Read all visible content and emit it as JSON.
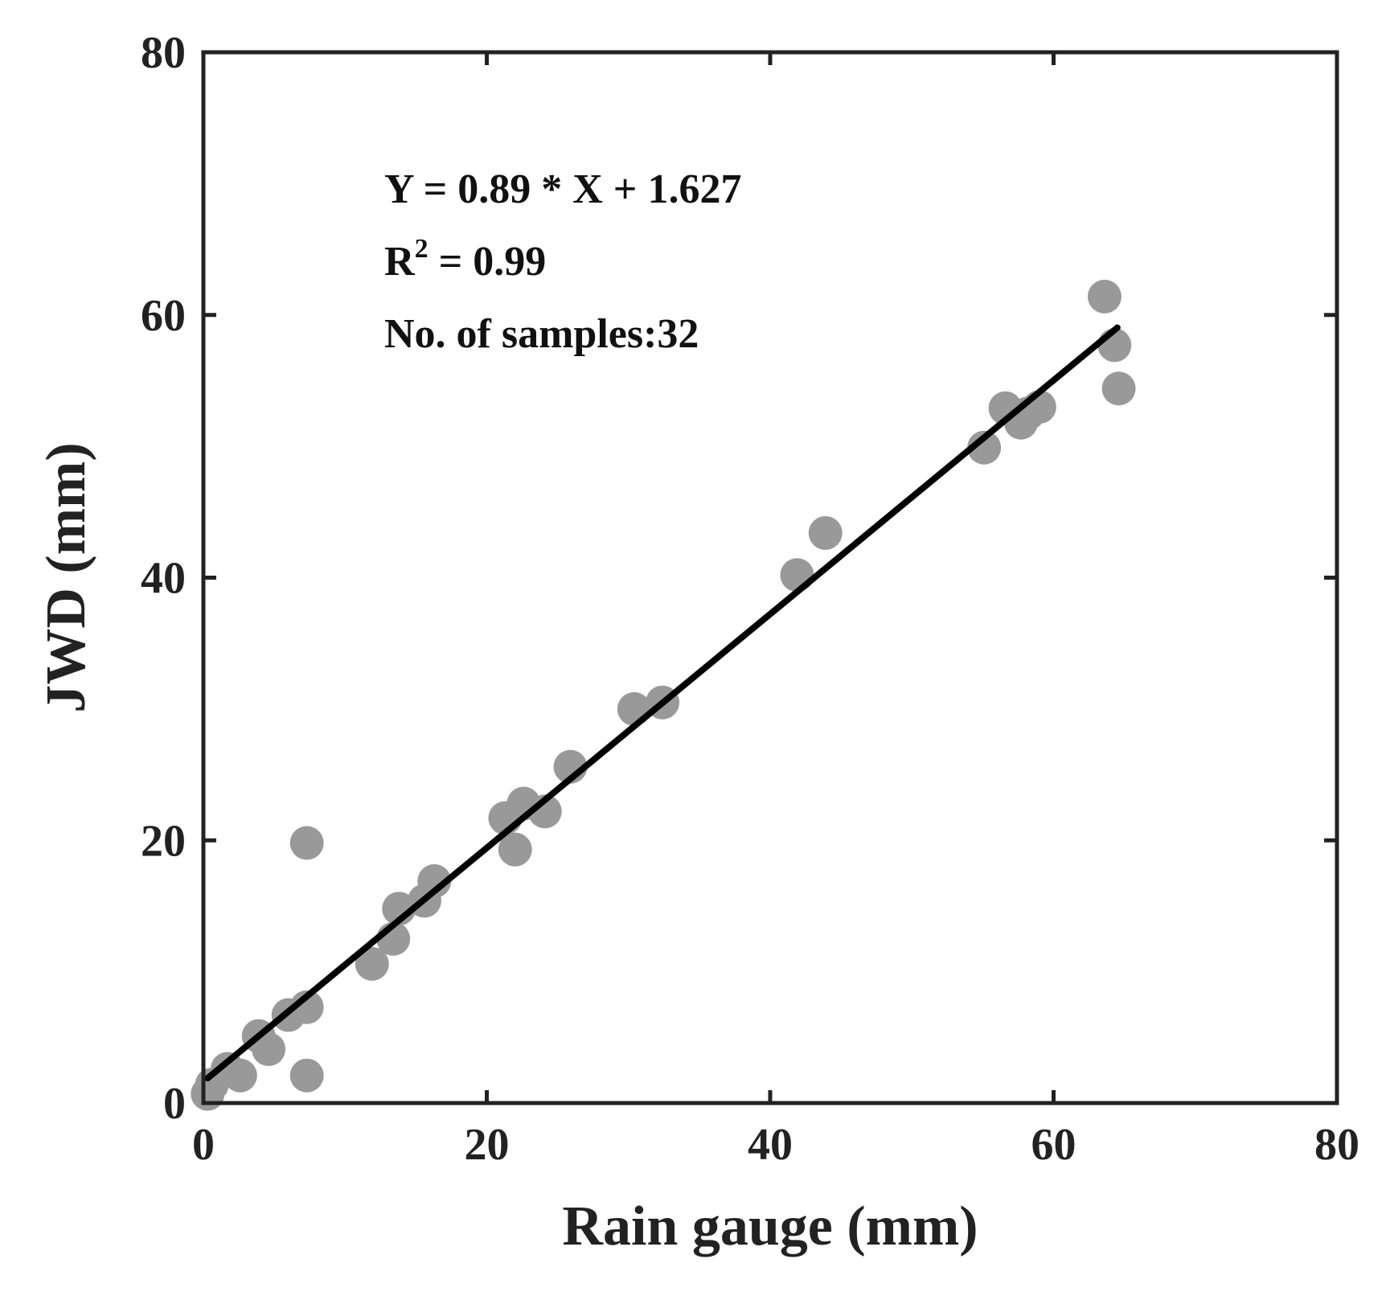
{
  "chart_data": {
    "type": "scatter",
    "xlabel": "Rain gauge (mm)",
    "ylabel": "JWD (mm)",
    "xlim": [
      0,
      80
    ],
    "ylim": [
      0,
      80
    ],
    "xticks": [
      "0",
      "20",
      "40",
      "60",
      "80"
    ],
    "yticks": [
      "0",
      "20",
      "40",
      "60",
      "80"
    ],
    "grid": false,
    "colors": {
      "points": "#999999",
      "fit_line": "#000000",
      "axes": "#222222"
    },
    "annotations": {
      "equation": "Y = 0.89 * X + 1.627",
      "r2_prefix": "R",
      "r2_exponent": "2",
      "r2_value": " = 0.99",
      "samples": "No. of samples:32"
    },
    "fit_line": {
      "slope": 0.89,
      "intercept": 1.627,
      "x_range": [
        0.3,
        64.5
      ]
    },
    "points": [
      {
        "x": 0.3,
        "y": 0.7
      },
      {
        "x": 0.6,
        "y": 1.4
      },
      {
        "x": 1.7,
        "y": 2.6
      },
      {
        "x": 2.6,
        "y": 2.1
      },
      {
        "x": 3.9,
        "y": 5.1
      },
      {
        "x": 4.6,
        "y": 4.1
      },
      {
        "x": 6.0,
        "y": 6.7
      },
      {
        "x": 7.3,
        "y": 7.3
      },
      {
        "x": 7.3,
        "y": 2.1
      },
      {
        "x": 7.3,
        "y": 19.8
      },
      {
        "x": 11.9,
        "y": 10.6
      },
      {
        "x": 13.4,
        "y": 12.5
      },
      {
        "x": 13.8,
        "y": 14.8
      },
      {
        "x": 15.6,
        "y": 15.4
      },
      {
        "x": 16.3,
        "y": 16.9
      },
      {
        "x": 21.3,
        "y": 21.7
      },
      {
        "x": 22.0,
        "y": 19.3
      },
      {
        "x": 22.6,
        "y": 22.8
      },
      {
        "x": 24.1,
        "y": 22.2
      },
      {
        "x": 25.9,
        "y": 25.6
      },
      {
        "x": 30.4,
        "y": 30.0
      },
      {
        "x": 32.4,
        "y": 30.5
      },
      {
        "x": 41.9,
        "y": 40.2
      },
      {
        "x": 43.9,
        "y": 43.4
      },
      {
        "x": 55.1,
        "y": 49.9
      },
      {
        "x": 56.6,
        "y": 52.9
      },
      {
        "x": 57.7,
        "y": 51.8
      },
      {
        "x": 59.0,
        "y": 53.0
      },
      {
        "x": 63.6,
        "y": 61.4
      },
      {
        "x": 64.3,
        "y": 57.7
      },
      {
        "x": 64.6,
        "y": 54.4
      },
      {
        "x": 58.2,
        "y": 52.5
      }
    ]
  }
}
